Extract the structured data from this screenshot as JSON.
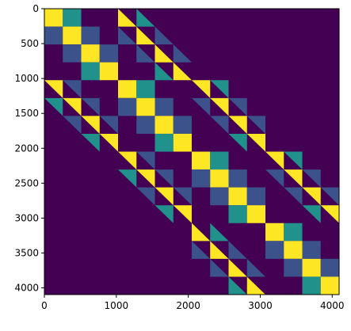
{
  "chart_data": {
    "type": "heatmap",
    "title": "",
    "xlabel": "",
    "ylabel": "",
    "matrix_size": 4096,
    "xlim": [
      0,
      4096
    ],
    "ylim": [
      4096,
      0
    ],
    "x_ticks": [
      0,
      1000,
      2000,
      3000,
      4000
    ],
    "x_tick_labels": [
      "0",
      "1000",
      "2000",
      "3000",
      "4000"
    ],
    "y_ticks": [
      0,
      500,
      1000,
      1500,
      2000,
      2500,
      3000,
      3500,
      4000
    ],
    "y_tick_labels": [
      "0",
      "500",
      "1000",
      "1500",
      "2000",
      "2500",
      "3000",
      "3500",
      "4000"
    ],
    "grid": false,
    "colormap": "viridis",
    "colors": {
      "background": "#440154",
      "low": "#3b528b",
      "mid": "#21918c",
      "high": "#fde725"
    },
    "block_size": 256,
    "blocks": [
      {
        "row": 0,
        "col": 0,
        "shape": "full",
        "level": "high"
      },
      {
        "row": 0,
        "col": 1,
        "shape": "full",
        "level": "mid"
      },
      {
        "row": 0,
        "col": 4,
        "shape": "lower",
        "level": "high"
      },
      {
        "row": 0,
        "col": 5,
        "shape": "lower",
        "level": "mid"
      },
      {
        "row": 1,
        "col": 0,
        "shape": "full",
        "level": "low"
      },
      {
        "row": 1,
        "col": 1,
        "shape": "full",
        "level": "high"
      },
      {
        "row": 1,
        "col": 2,
        "shape": "full",
        "level": "low"
      },
      {
        "row": 1,
        "col": 4,
        "shape": "lower",
        "level": "low"
      },
      {
        "row": 1,
        "col": 5,
        "shape": "lower",
        "level": "high"
      },
      {
        "row": 1,
        "col": 6,
        "shape": "lower",
        "level": "low"
      },
      {
        "row": 2,
        "col": 1,
        "shape": "full",
        "level": "low"
      },
      {
        "row": 2,
        "col": 2,
        "shape": "full",
        "level": "high"
      },
      {
        "row": 2,
        "col": 3,
        "shape": "full",
        "level": "low"
      },
      {
        "row": 2,
        "col": 5,
        "shape": "lower",
        "level": "low"
      },
      {
        "row": 2,
        "col": 6,
        "shape": "lower",
        "level": "high"
      },
      {
        "row": 2,
        "col": 7,
        "shape": "lower",
        "level": "low"
      },
      {
        "row": 3,
        "col": 2,
        "shape": "full",
        "level": "mid"
      },
      {
        "row": 3,
        "col": 3,
        "shape": "full",
        "level": "high"
      },
      {
        "row": 3,
        "col": 6,
        "shape": "lower",
        "level": "mid"
      },
      {
        "row": 3,
        "col": 7,
        "shape": "lower",
        "level": "high"
      },
      {
        "row": 4,
        "col": 0,
        "shape": "upper",
        "level": "high"
      },
      {
        "row": 4,
        "col": 1,
        "shape": "upper",
        "level": "low"
      },
      {
        "row": 4,
        "col": 4,
        "shape": "full",
        "level": "high"
      },
      {
        "row": 4,
        "col": 5,
        "shape": "full",
        "level": "mid"
      },
      {
        "row": 4,
        "col": 8,
        "shape": "upper",
        "level": "high"
      },
      {
        "row": 4,
        "col": 9,
        "shape": "upper",
        "level": "mid"
      },
      {
        "row": 5,
        "col": 0,
        "shape": "upper",
        "level": "mid"
      },
      {
        "row": 5,
        "col": 1,
        "shape": "upper",
        "level": "high"
      },
      {
        "row": 5,
        "col": 2,
        "shape": "upper",
        "level": "low"
      },
      {
        "row": 5,
        "col": 4,
        "shape": "full",
        "level": "low"
      },
      {
        "row": 5,
        "col": 5,
        "shape": "full",
        "level": "high"
      },
      {
        "row": 5,
        "col": 6,
        "shape": "full",
        "level": "low"
      },
      {
        "row": 5,
        "col": 8,
        "shape": "upper",
        "level": "low"
      },
      {
        "row": 5,
        "col": 9,
        "shape": "upper",
        "level": "high"
      },
      {
        "row": 5,
        "col": 10,
        "shape": "upper",
        "level": "low"
      },
      {
        "row": 6,
        "col": 1,
        "shape": "upper",
        "level": "low"
      },
      {
        "row": 6,
        "col": 2,
        "shape": "upper",
        "level": "high"
      },
      {
        "row": 6,
        "col": 3,
        "shape": "upper",
        "level": "low"
      },
      {
        "row": 6,
        "col": 5,
        "shape": "full",
        "level": "low"
      },
      {
        "row": 6,
        "col": 6,
        "shape": "full",
        "level": "high"
      },
      {
        "row": 6,
        "col": 7,
        "shape": "full",
        "level": "low"
      },
      {
        "row": 6,
        "col": 9,
        "shape": "upper",
        "level": "low"
      },
      {
        "row": 6,
        "col": 10,
        "shape": "upper",
        "level": "high"
      },
      {
        "row": 6,
        "col": 11,
        "shape": "upper",
        "level": "low"
      },
      {
        "row": 7,
        "col": 2,
        "shape": "upper",
        "level": "mid"
      },
      {
        "row": 7,
        "col": 3,
        "shape": "upper",
        "level": "high"
      },
      {
        "row": 7,
        "col": 6,
        "shape": "full",
        "level": "mid"
      },
      {
        "row": 7,
        "col": 7,
        "shape": "full",
        "level": "high"
      },
      {
        "row": 7,
        "col": 10,
        "shape": "upper",
        "level": "mid"
      },
      {
        "row": 7,
        "col": 11,
        "shape": "upper",
        "level": "high"
      },
      {
        "row": 8,
        "col": 4,
        "shape": "upper",
        "level": "high"
      },
      {
        "row": 8,
        "col": 5,
        "shape": "upper",
        "level": "low"
      },
      {
        "row": 8,
        "col": 8,
        "shape": "full",
        "level": "high"
      },
      {
        "row": 8,
        "col": 9,
        "shape": "full",
        "level": "mid"
      },
      {
        "row": 8,
        "col": 12,
        "shape": "upper",
        "level": "high"
      },
      {
        "row": 8,
        "col": 13,
        "shape": "upper",
        "level": "mid"
      },
      {
        "row": 9,
        "col": 4,
        "shape": "upper",
        "level": "mid"
      },
      {
        "row": 9,
        "col": 5,
        "shape": "upper",
        "level": "high"
      },
      {
        "row": 9,
        "col": 6,
        "shape": "upper",
        "level": "low"
      },
      {
        "row": 9,
        "col": 8,
        "shape": "full",
        "level": "low"
      },
      {
        "row": 9,
        "col": 9,
        "shape": "full",
        "level": "high"
      },
      {
        "row": 9,
        "col": 10,
        "shape": "full",
        "level": "low"
      },
      {
        "row": 9,
        "col": 12,
        "shape": "upper",
        "level": "low"
      },
      {
        "row": 9,
        "col": 13,
        "shape": "upper",
        "level": "high"
      },
      {
        "row": 9,
        "col": 14,
        "shape": "upper",
        "level": "low"
      },
      {
        "row": 10,
        "col": 5,
        "shape": "upper",
        "level": "low"
      },
      {
        "row": 10,
        "col": 6,
        "shape": "upper",
        "level": "high"
      },
      {
        "row": 10,
        "col": 7,
        "shape": "upper",
        "level": "low"
      },
      {
        "row": 10,
        "col": 9,
        "shape": "full",
        "level": "low"
      },
      {
        "row": 10,
        "col": 10,
        "shape": "full",
        "level": "high"
      },
      {
        "row": 10,
        "col": 11,
        "shape": "full",
        "level": "low"
      },
      {
        "row": 10,
        "col": 13,
        "shape": "upper",
        "level": "low"
      },
      {
        "row": 10,
        "col": 14,
        "shape": "upper",
        "level": "high"
      },
      {
        "row": 10,
        "col": 15,
        "shape": "upper",
        "level": "low"
      },
      {
        "row": 11,
        "col": 6,
        "shape": "upper",
        "level": "mid"
      },
      {
        "row": 11,
        "col": 7,
        "shape": "upper",
        "level": "high"
      },
      {
        "row": 11,
        "col": 10,
        "shape": "full",
        "level": "mid"
      },
      {
        "row": 11,
        "col": 11,
        "shape": "full",
        "level": "high"
      },
      {
        "row": 11,
        "col": 14,
        "shape": "upper",
        "level": "mid"
      },
      {
        "row": 11,
        "col": 15,
        "shape": "upper",
        "level": "high"
      },
      {
        "row": 12,
        "col": 8,
        "shape": "lower",
        "level": "high"
      },
      {
        "row": 12,
        "col": 9,
        "shape": "lower",
        "level": "mid"
      },
      {
        "row": 12,
        "col": 12,
        "shape": "full",
        "level": "high"
      },
      {
        "row": 12,
        "col": 13,
        "shape": "full",
        "level": "mid"
      },
      {
        "row": 13,
        "col": 8,
        "shape": "lower",
        "level": "low"
      },
      {
        "row": 13,
        "col": 9,
        "shape": "lower",
        "level": "high"
      },
      {
        "row": 13,
        "col": 10,
        "shape": "lower",
        "level": "low"
      },
      {
        "row": 13,
        "col": 12,
        "shape": "full",
        "level": "low"
      },
      {
        "row": 13,
        "col": 13,
        "shape": "full",
        "level": "high"
      },
      {
        "row": 13,
        "col": 14,
        "shape": "full",
        "level": "low"
      },
      {
        "row": 14,
        "col": 9,
        "shape": "lower",
        "level": "low"
      },
      {
        "row": 14,
        "col": 10,
        "shape": "lower",
        "level": "high"
      },
      {
        "row": 14,
        "col": 11,
        "shape": "lower",
        "level": "low"
      },
      {
        "row": 14,
        "col": 13,
        "shape": "full",
        "level": "low"
      },
      {
        "row": 14,
        "col": 14,
        "shape": "full",
        "level": "high"
      },
      {
        "row": 14,
        "col": 15,
        "shape": "full",
        "level": "low"
      },
      {
        "row": 15,
        "col": 10,
        "shape": "lower",
        "level": "mid"
      },
      {
        "row": 15,
        "col": 11,
        "shape": "lower",
        "level": "high"
      },
      {
        "row": 15,
        "col": 14,
        "shape": "full",
        "level": "mid"
      },
      {
        "row": 15,
        "col": 15,
        "shape": "full",
        "level": "high"
      }
    ]
  }
}
